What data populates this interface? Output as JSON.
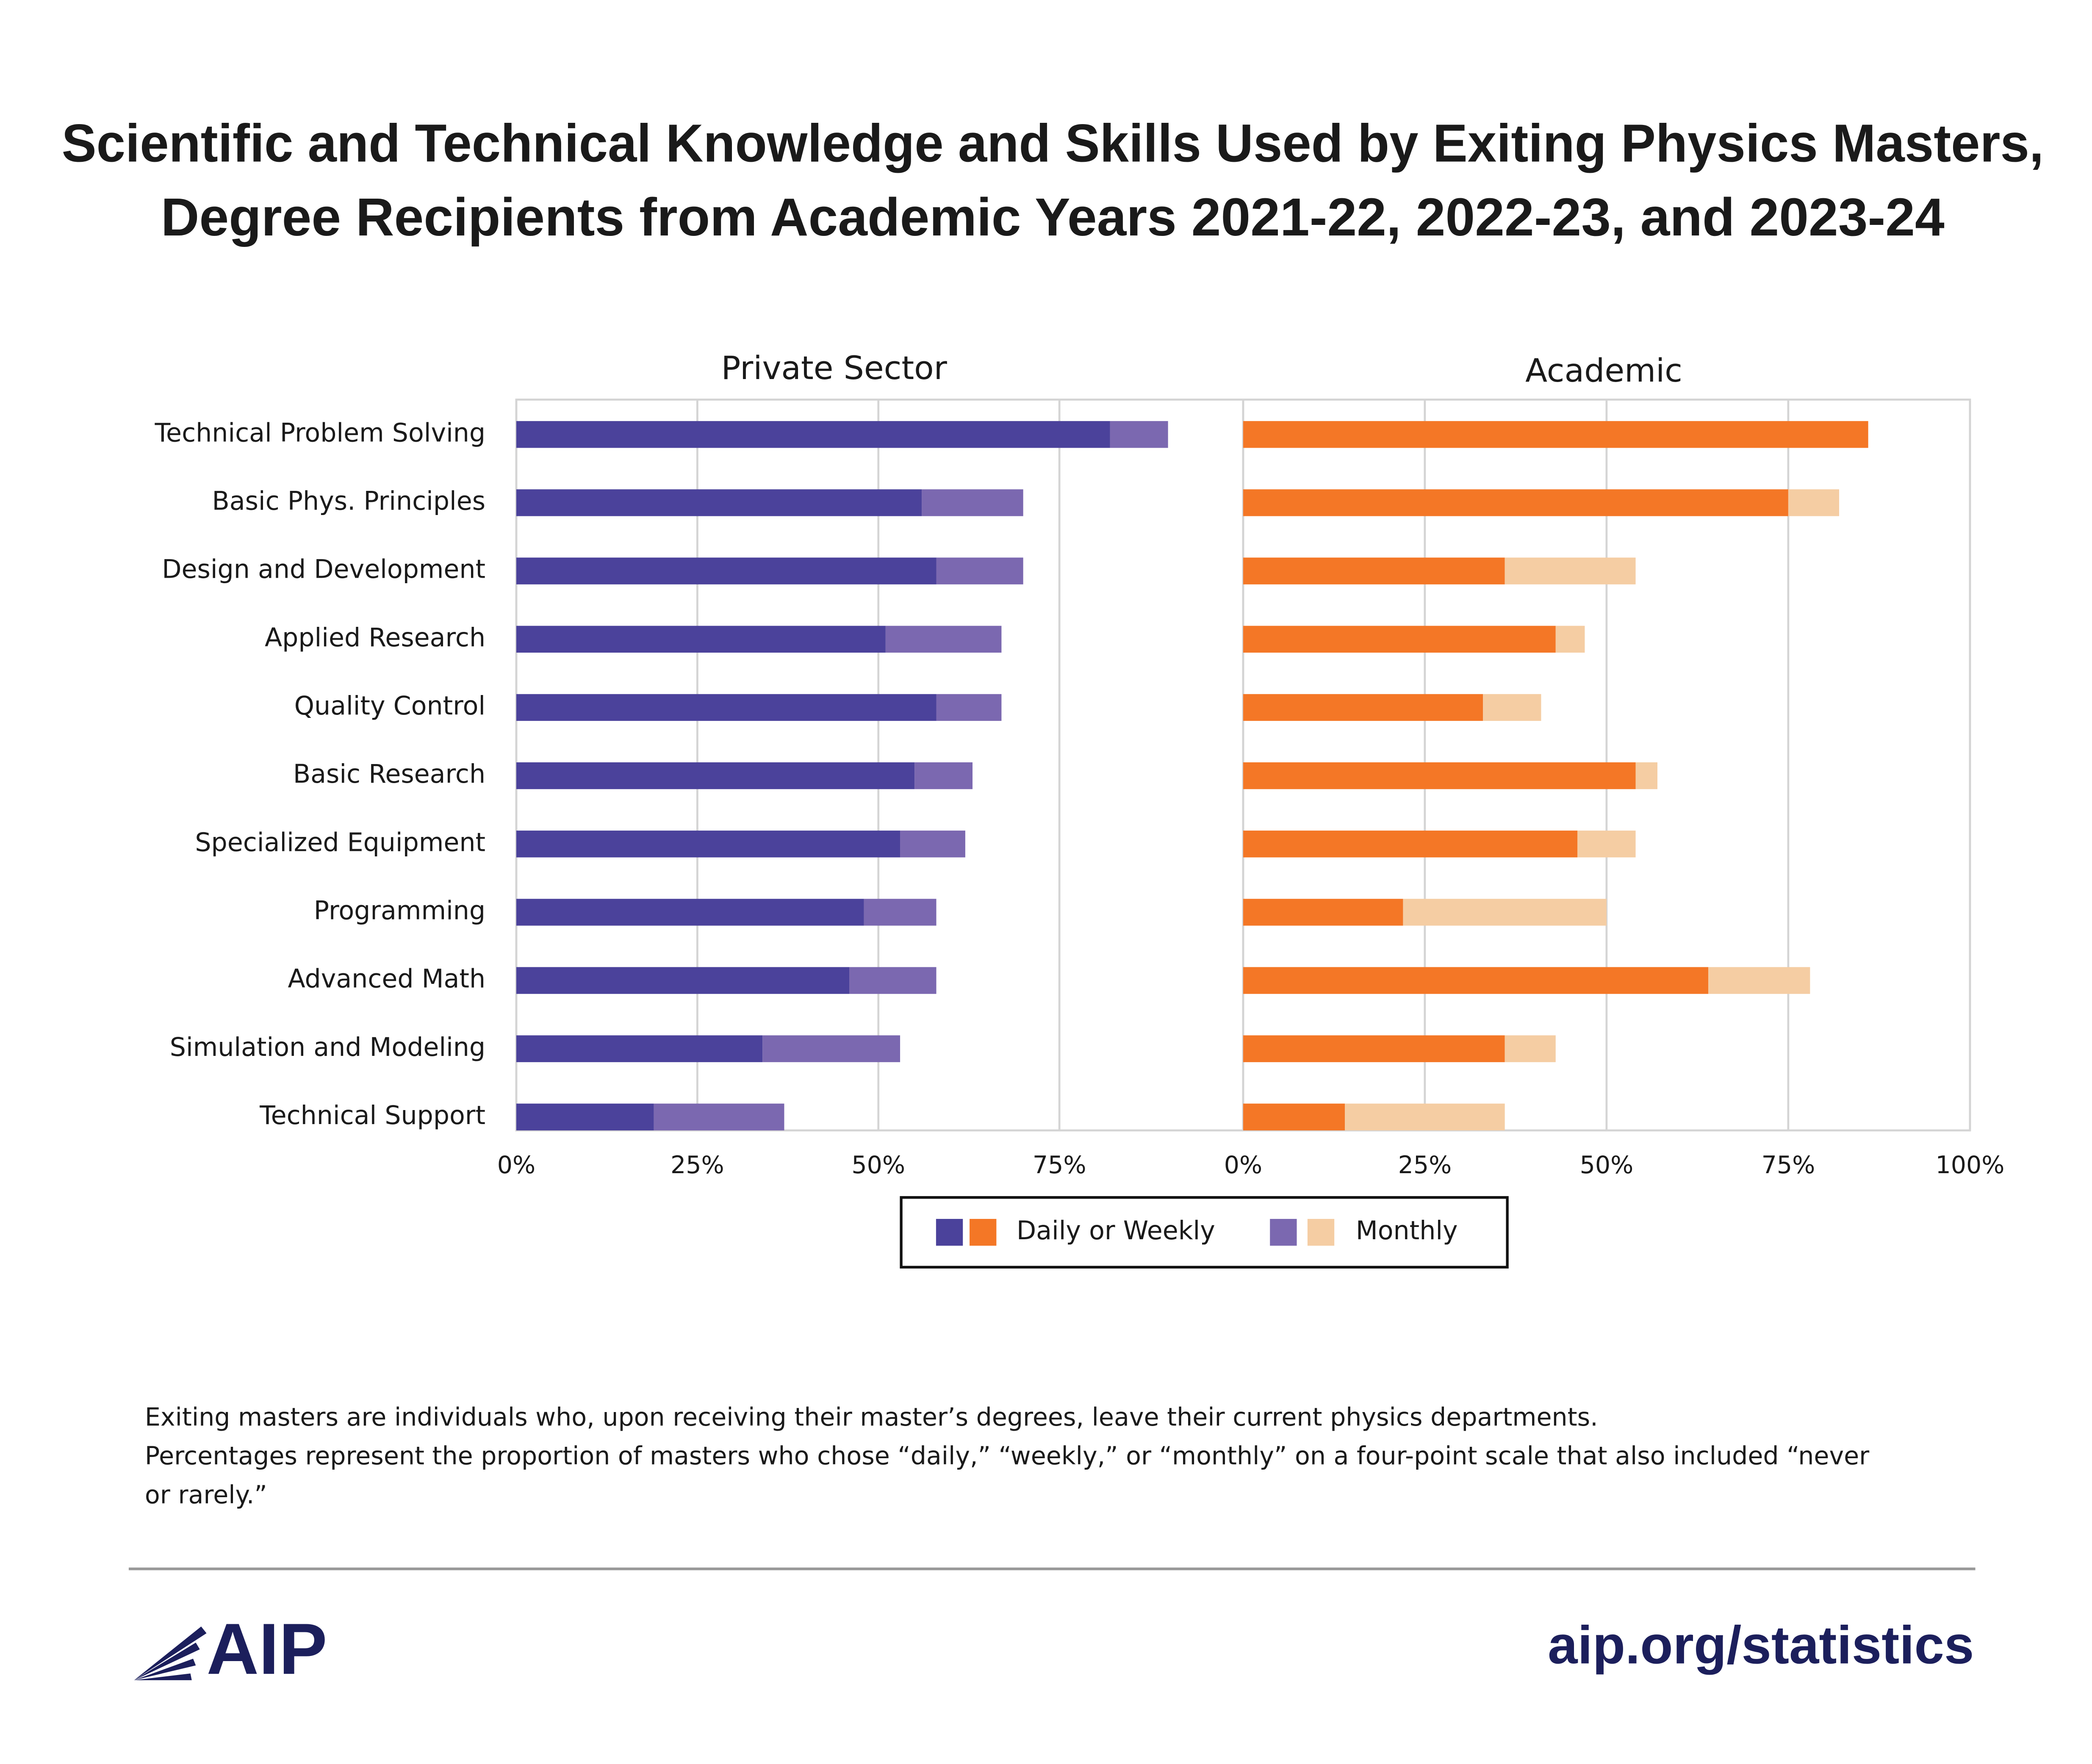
{
  "chart_data": {
    "type": "bar",
    "orientation": "horizontal",
    "stacked": true,
    "title": [
      "Scientific and Technical Knowledge and Skills Used by Exiting Physics Masters,",
      "Degree Recipients from Academic Years 2021-22, 2022-23, and 2023-24"
    ],
    "categories": [
      "Technical Problem Solving",
      "Basic Phys. Principles",
      "Design and Development",
      "Applied Research",
      "Quality Control",
      "Basic Research",
      "Specialized Equipment",
      "Programming",
      "Advanced Math",
      "Simulation and Modeling",
      "Technical Support"
    ],
    "legend": [
      "Daily or Weekly",
      "Monthly"
    ],
    "grid": true,
    "panels": [
      {
        "title": "Private Sector",
        "xlim": [
          0,
          100
        ],
        "xticks": [
          {
            "value": 0,
            "label": "0%"
          },
          {
            "value": 25,
            "label": "25%"
          },
          {
            "value": 50,
            "label": "50%"
          },
          {
            "value": 75,
            "label": "75%"
          }
        ],
        "series": [
          {
            "color": "#4b429b",
            "values": [
              82,
              56,
              58,
              51,
              58,
              55,
              53,
              48,
              46,
              34,
              19
            ]
          },
          {
            "color": "#7b68b0",
            "values": [
              8,
              14,
              12,
              16,
              9,
              8,
              9,
              10,
              12,
              19,
              18
            ]
          }
        ]
      },
      {
        "title": "Academic",
        "xlim": [
          0,
          100
        ],
        "xticks": [
          {
            "value": 0,
            "label": "0%"
          },
          {
            "value": 25,
            "label": "25%"
          },
          {
            "value": 50,
            "label": "50%"
          },
          {
            "value": 75,
            "label": "75%"
          },
          {
            "value": 100,
            "label": "100%"
          }
        ],
        "series": [
          {
            "color": "#f47726",
            "values": [
              86,
              75,
              36,
              43,
              33,
              54,
              46,
              22,
              64,
              36,
              14
            ]
          },
          {
            "color": "#f5cda3",
            "values": [
              0,
              7,
              18,
              4,
              8,
              3,
              8,
              28,
              14,
              7,
              22
            ]
          }
        ]
      }
    ]
  },
  "notes": [
    "Exiting masters are individuals who, upon receiving their master’s degrees,  leave their current physics departments.",
    "Percentages represent the proportion of masters who chose “daily,” “weekly,” or “monthly” on a four-point scale that also included “never",
    "or rarely.”"
  ],
  "footer": {
    "logo": "AIP",
    "url": "aip.org/statistics"
  }
}
